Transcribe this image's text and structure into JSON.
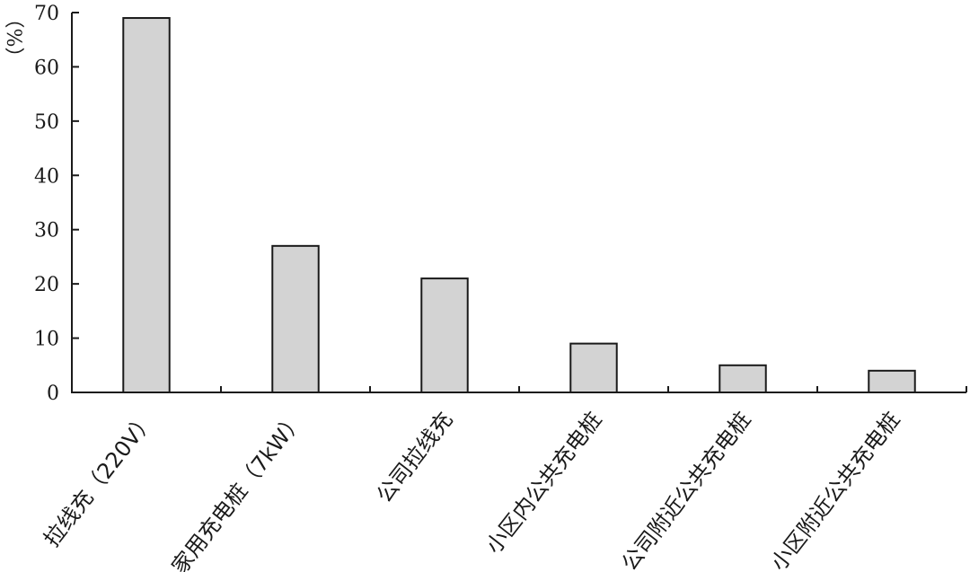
{
  "chart_data": {
    "type": "bar",
    "categories": [
      "拉线充（220V）",
      "家用充电桩（7kW）",
      "公司拉线充",
      "小区内公共充电桩",
      "公司附近公共充电桩",
      "小区附近公共充电桩"
    ],
    "values": [
      69,
      27,
      21,
      9,
      5,
      4
    ],
    "title": "",
    "xlabel": "",
    "ylabel": "（%）",
    "ylim": [
      0,
      70
    ],
    "yticks": [
      0,
      10,
      20,
      30,
      40,
      50,
      60,
      70
    ],
    "grid": false,
    "legend": "none",
    "colors": {
      "bar_fill": "#d3d3d3",
      "bar_stroke": "#1a1a1a",
      "axis": "#1a1a1a"
    }
  }
}
